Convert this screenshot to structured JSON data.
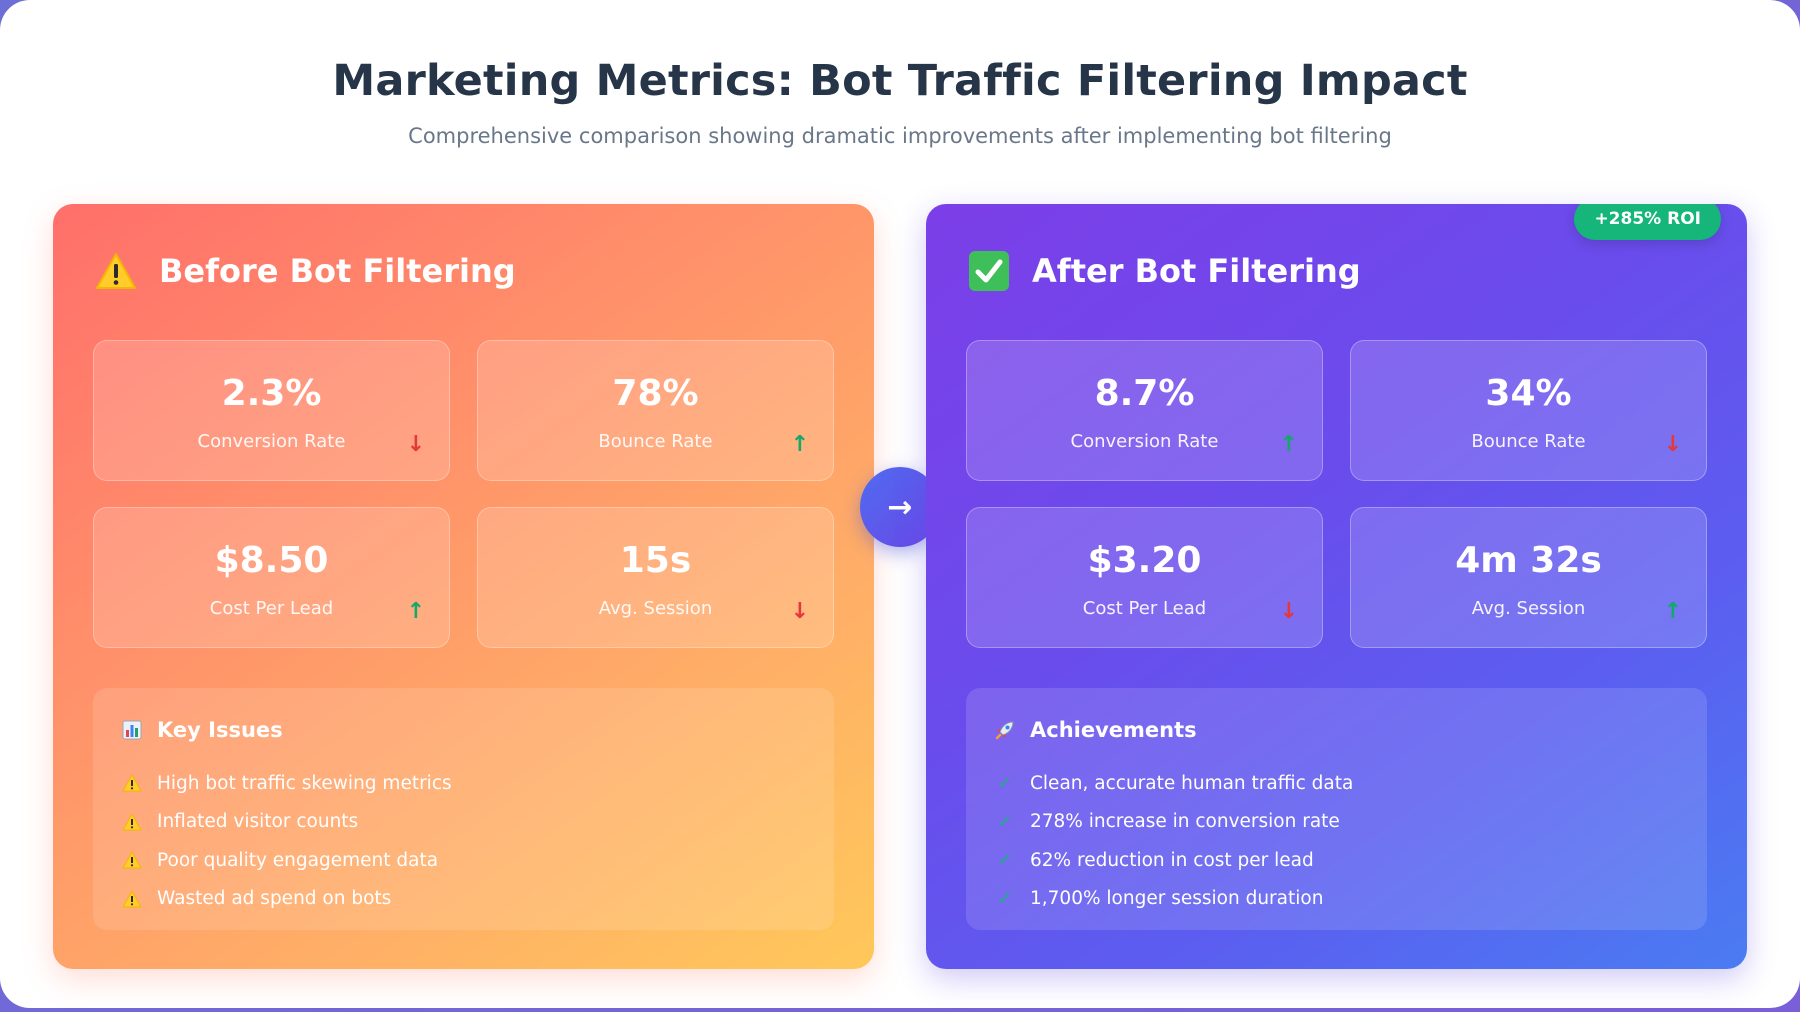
{
  "header": {
    "title": "Marketing Metrics: Bot Traffic Filtering Impact",
    "subtitle": "Comprehensive comparison showing dramatic improvements after implementing bot filtering"
  },
  "colors": {
    "before_gradient": [
      "#ff6f6a",
      "#ffc85a"
    ],
    "after_gradient": [
      "#7c3ee8",
      "#4a7cf2"
    ],
    "trend_up": "#14a86a",
    "trend_down": "#e5383b",
    "roi_badge": "#16b57a"
  },
  "before": {
    "icon": "warning-icon",
    "title": "Before Bot Filtering",
    "metrics": [
      {
        "value": "2.3%",
        "label": "Conversion Rate",
        "trend": "↓",
        "trend_dir": "down"
      },
      {
        "value": "78%",
        "label": "Bounce Rate",
        "trend": "↑",
        "trend_dir": "up"
      },
      {
        "value": "$8.50",
        "label": "Cost Per Lead",
        "trend": "↑",
        "trend_dir": "up"
      },
      {
        "value": "15s",
        "label": "Avg. Session",
        "trend": "↓",
        "trend_dir": "down"
      }
    ],
    "section": {
      "icon": "bar-chart-icon",
      "title": "Key Issues",
      "items": [
        "High bot traffic skewing metrics",
        "Inflated visitor counts",
        "Poor quality engagement data",
        "Wasted ad spend on bots"
      ]
    }
  },
  "transition": {
    "icon": "arrow-right-icon",
    "glyph": "→"
  },
  "after": {
    "icon": "check-box-icon",
    "title": "After Bot Filtering",
    "badge": "+285% ROI",
    "metrics": [
      {
        "value": "8.7%",
        "label": "Conversion Rate",
        "trend": "↑",
        "trend_dir": "up"
      },
      {
        "value": "34%",
        "label": "Bounce Rate",
        "trend": "↓",
        "trend_dir": "down"
      },
      {
        "value": "$3.20",
        "label": "Cost Per Lead",
        "trend": "↓",
        "trend_dir": "down"
      },
      {
        "value": "4m 32s",
        "label": "Avg. Session",
        "trend": "↑",
        "trend_dir": "up"
      }
    ],
    "section": {
      "icon": "rocket-icon",
      "title": "Achievements",
      "items": [
        "Clean, accurate human traffic data",
        "278% increase in conversion rate",
        "62% reduction in cost per lead",
        "1,700% longer session duration"
      ]
    }
  }
}
